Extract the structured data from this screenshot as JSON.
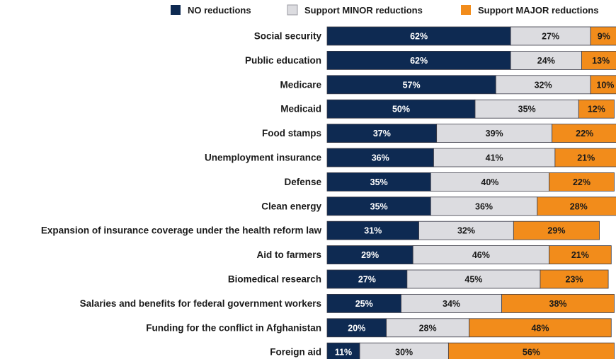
{
  "chart_data": {
    "type": "bar",
    "orientation": "horizontal",
    "stacked": true,
    "legend_position": "top",
    "xlim": [
      0,
      100
    ],
    "grid": false,
    "categories": [
      "Social security",
      "Public education",
      "Medicare",
      "Medicaid",
      "Food stamps",
      "Unemployment insurance",
      "Defense",
      "Clean energy",
      "Expansion of insurance coverage under the health reform law",
      "Aid to farmers",
      "Biomedical research",
      "Salaries and benefits for federal government workers",
      "Funding for the conflict in Afghanistan",
      "Foreign aid"
    ],
    "series": [
      {
        "name": "NO reductions",
        "color": "#0e2a52",
        "label_color": "#ffffff",
        "values": [
          62,
          62,
          57,
          50,
          37,
          36,
          35,
          35,
          31,
          29,
          27,
          25,
          20,
          11
        ]
      },
      {
        "name": "Support MINOR reductions",
        "color": "#dcdce0",
        "label_color": "#1a1a1a",
        "values": [
          27,
          24,
          32,
          35,
          39,
          41,
          40,
          36,
          32,
          46,
          45,
          34,
          28,
          30
        ]
      },
      {
        "name": "Support MAJOR reductions",
        "color": "#f28c1b",
        "label_color": "#1a1a1a",
        "values": [
          9,
          13,
          10,
          12,
          22,
          21,
          22,
          28,
          29,
          21,
          23,
          38,
          48,
          56
        ]
      }
    ],
    "value_suffix": "%"
  }
}
